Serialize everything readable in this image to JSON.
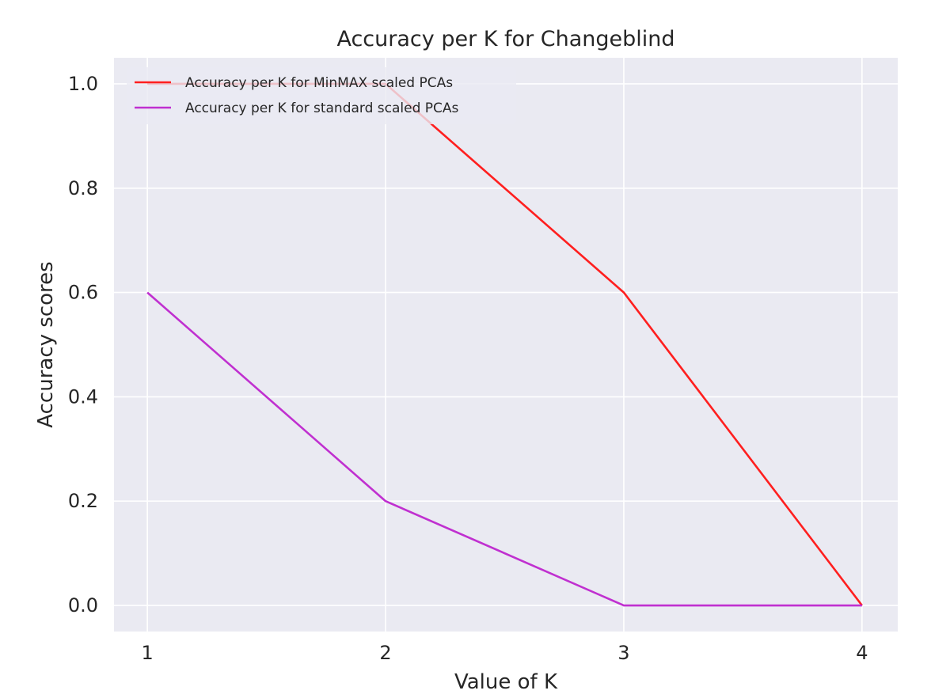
{
  "chart_data": {
    "type": "line",
    "title": "Accuracy per K for Changeblind",
    "xlabel": "Value of K",
    "ylabel": "Accuracy scores",
    "x": [
      1,
      2,
      3,
      4
    ],
    "xticks": [
      "1",
      "2",
      "3",
      "4"
    ],
    "yticks": [
      "0.0",
      "0.2",
      "0.4",
      "0.6",
      "0.8",
      "1.0"
    ],
    "xlim": [
      0.86,
      4.15
    ],
    "ylim": [
      -0.05,
      1.05
    ],
    "grid": true,
    "legend_position": "top-left",
    "background": "#eaeaf2",
    "grid_color": "#ffffff",
    "series": [
      {
        "name": "Accuracy per K for MinMAX scaled PCAs",
        "values": [
          1.0,
          1.0,
          0.6,
          0.0
        ],
        "color": "#ff1f1f"
      },
      {
        "name": "Accuracy per K for standard scaled PCAs",
        "values": [
          0.6,
          0.2,
          0.0,
          0.0
        ],
        "color": "#c030d0"
      }
    ]
  }
}
